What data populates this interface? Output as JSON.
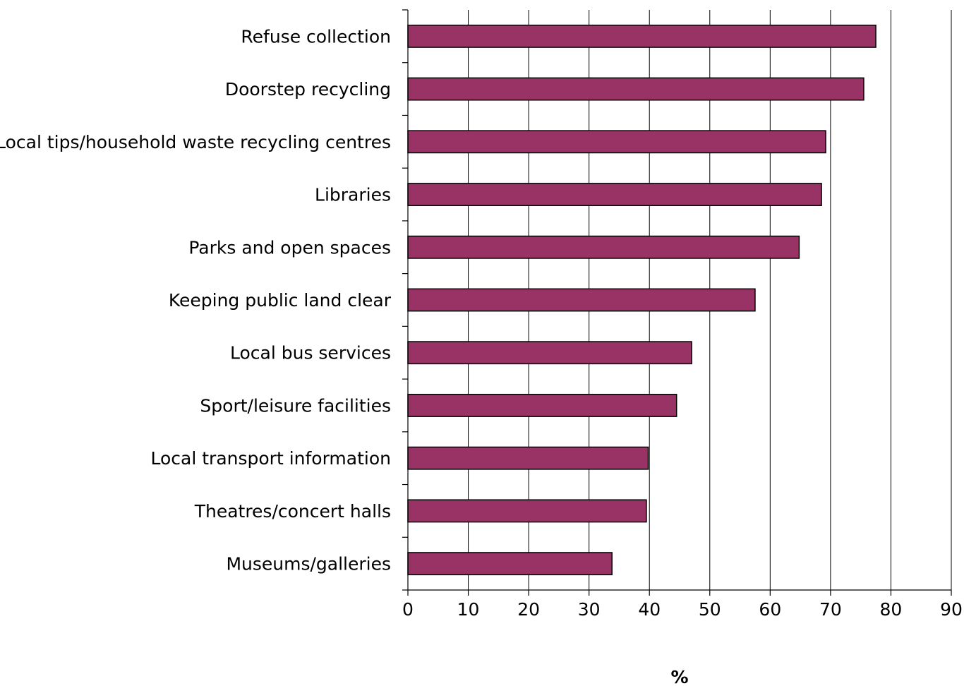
{
  "chart_data": {
    "type": "bar",
    "orientation": "horizontal",
    "categories": [
      "Refuse collection",
      "Doorstep recycling",
      "Local tips/household waste recycling centres",
      "Libraries",
      "Parks and open spaces",
      "Keeping public land clear",
      "Local bus services",
      "Sport/leisure facilities",
      "Local transport information",
      "Theatres/concert halls",
      "Museums/galleries"
    ],
    "values": [
      77.5,
      75.5,
      69.2,
      68.5,
      64.8,
      57.5,
      47,
      44.5,
      39.8,
      39.5,
      33.8
    ],
    "title": "",
    "xlabel": "%",
    "ylabel": "",
    "xlim": [
      0,
      90
    ],
    "xticks": [
      "0",
      "10",
      "20",
      "30",
      "40",
      "50",
      "60",
      "70",
      "80",
      "90"
    ],
    "grid": "vertical",
    "bar_color": "#993366"
  }
}
